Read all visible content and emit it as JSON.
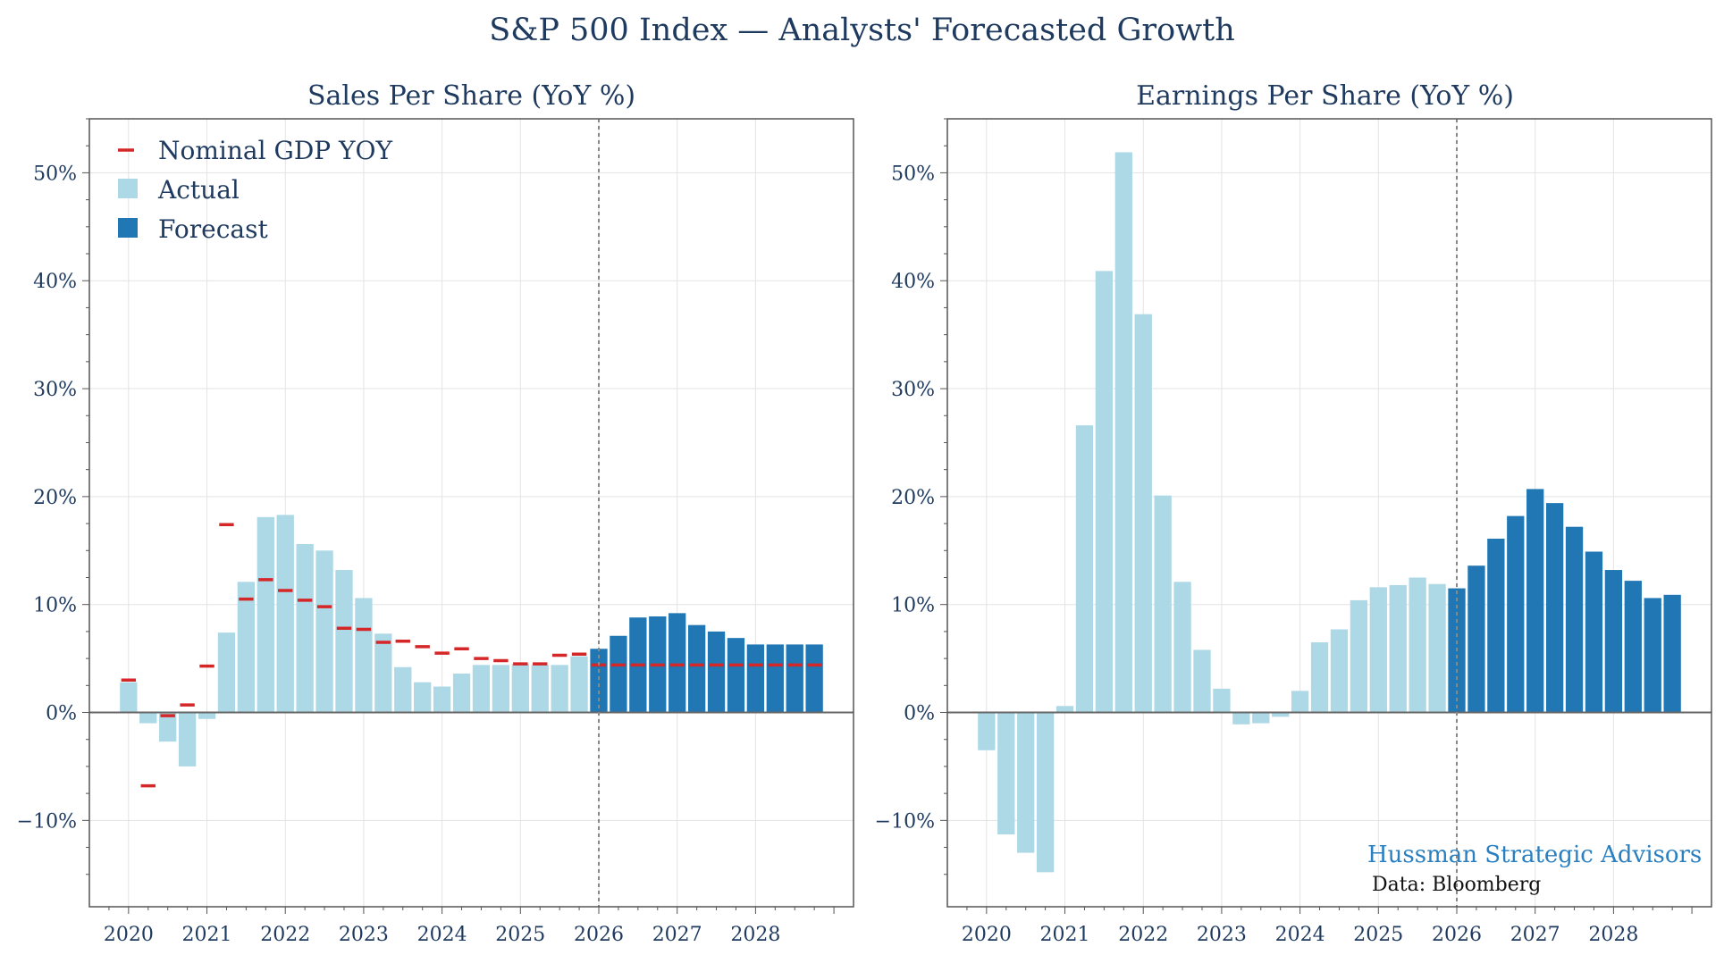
{
  "title": "S&P 500 Index — Analysts' Forecasted Growth",
  "brand": "Hussman Strategic Advisors",
  "source": "Data: Bloomberg",
  "colors": {
    "actual": "#add8e6",
    "forecast": "#2077b4",
    "gdp": "#d62728",
    "text": "#1f3a5f"
  },
  "chart_data": [
    {
      "type": "bar",
      "title": "Sales Per Share (YoY %)",
      "x_ticks": [
        "2020",
        "2021",
        "2022",
        "2023",
        "2024",
        "2025",
        "2026",
        "2027",
        "2028"
      ],
      "y_ticks": [
        "−10%",
        "0%",
        "10%",
        "20%",
        "30%",
        "40%",
        "50%"
      ],
      "ylim": [
        -18,
        55
      ],
      "xlim": [
        2019.5,
        2029.25
      ],
      "grid": true,
      "forecast_divider": 2026.0,
      "legend": {
        "placement": "top-left",
        "items": [
          "Nominal GDP YOY",
          "Actual",
          "Forecast"
        ]
      },
      "series": [
        {
          "name": "Actual",
          "x": [
            2020.0,
            2020.25,
            2020.5,
            2020.75,
            2021.0,
            2021.25,
            2021.5,
            2021.75,
            2022.0,
            2022.25,
            2022.5,
            2022.75,
            2023.0,
            2023.25,
            2023.5,
            2023.75,
            2024.0,
            2024.25,
            2024.5,
            2024.75,
            2025.0,
            2025.25,
            2025.5,
            2025.75
          ],
          "values": [
            2.8,
            -1.0,
            -2.7,
            -5.0,
            -0.6,
            7.4,
            12.1,
            18.1,
            18.3,
            15.6,
            15.0,
            13.2,
            10.6,
            7.3,
            4.2,
            2.8,
            2.4,
            3.6,
            4.4,
            4.4,
            4.5,
            4.4,
            4.4,
            5.2
          ]
        },
        {
          "name": "Forecast",
          "x": [
            2026.0,
            2026.25,
            2026.5,
            2026.75,
            2027.0,
            2027.25,
            2027.5,
            2027.75,
            2028.0,
            2028.25,
            2028.5,
            2028.75
          ],
          "values": [
            5.9,
            7.1,
            8.8,
            8.9,
            9.2,
            8.1,
            7.5,
            6.9,
            6.3,
            6.3,
            6.3,
            6.3
          ]
        },
        {
          "name": "Nominal GDP YOY",
          "marker": "dash",
          "x": [
            2020.0,
            2020.25,
            2020.5,
            2020.75,
            2021.0,
            2021.25,
            2021.5,
            2021.75,
            2022.0,
            2022.25,
            2022.5,
            2022.75,
            2023.0,
            2023.25,
            2023.5,
            2023.75,
            2024.0,
            2024.25,
            2024.5,
            2024.75,
            2025.0,
            2025.25,
            2025.5,
            2025.75,
            2026.0,
            2026.25,
            2026.5,
            2026.75,
            2027.0,
            2027.25,
            2027.5,
            2027.75,
            2028.0,
            2028.25,
            2028.5,
            2028.75
          ],
          "values": [
            3.0,
            -6.8,
            -0.3,
            0.7,
            4.3,
            17.4,
            10.5,
            12.3,
            11.3,
            10.4,
            9.8,
            7.8,
            7.7,
            6.5,
            6.6,
            6.1,
            5.5,
            5.9,
            5.0,
            4.8,
            4.5,
            4.5,
            5.3,
            5.4,
            4.4,
            4.4,
            4.4,
            4.4,
            4.4,
            4.4,
            4.4,
            4.4,
            4.4,
            4.4,
            4.4,
            4.4
          ]
        }
      ]
    },
    {
      "type": "bar",
      "title": "Earnings Per Share (YoY %)",
      "x_ticks": [
        "2020",
        "2021",
        "2022",
        "2023",
        "2024",
        "2025",
        "2026",
        "2027",
        "2028"
      ],
      "y_ticks": [
        "−10%",
        "0%",
        "10%",
        "20%",
        "30%",
        "40%",
        "50%"
      ],
      "ylim": [
        -18,
        55
      ],
      "xlim": [
        2019.5,
        2029.25
      ],
      "grid": true,
      "forecast_divider": 2026.0,
      "series": [
        {
          "name": "Actual",
          "x": [
            2020.0,
            2020.25,
            2020.5,
            2020.75,
            2021.0,
            2021.25,
            2021.5,
            2021.75,
            2022.0,
            2022.25,
            2022.5,
            2022.75,
            2023.0,
            2023.25,
            2023.5,
            2023.75,
            2024.0,
            2024.25,
            2024.5,
            2024.75,
            2025.0,
            2025.25,
            2025.5,
            2025.75
          ],
          "values": [
            -3.5,
            -11.3,
            -13.0,
            -14.8,
            0.6,
            26.6,
            40.9,
            51.9,
            36.9,
            20.1,
            12.1,
            5.8,
            2.2,
            -1.1,
            -1.0,
            -0.4,
            2.0,
            6.5,
            7.7,
            10.4,
            11.6,
            11.8,
            12.5,
            11.9
          ]
        },
        {
          "name": "Forecast",
          "x": [
            2026.0,
            2026.25,
            2026.5,
            2026.75,
            2027.0,
            2027.25,
            2027.5,
            2027.75,
            2028.0,
            2028.25,
            2028.5,
            2028.75
          ],
          "values": [
            11.5,
            13.6,
            16.1,
            18.2,
            20.7,
            19.4,
            17.2,
            14.9,
            13.2,
            12.2,
            10.6,
            10.9
          ]
        }
      ]
    }
  ]
}
